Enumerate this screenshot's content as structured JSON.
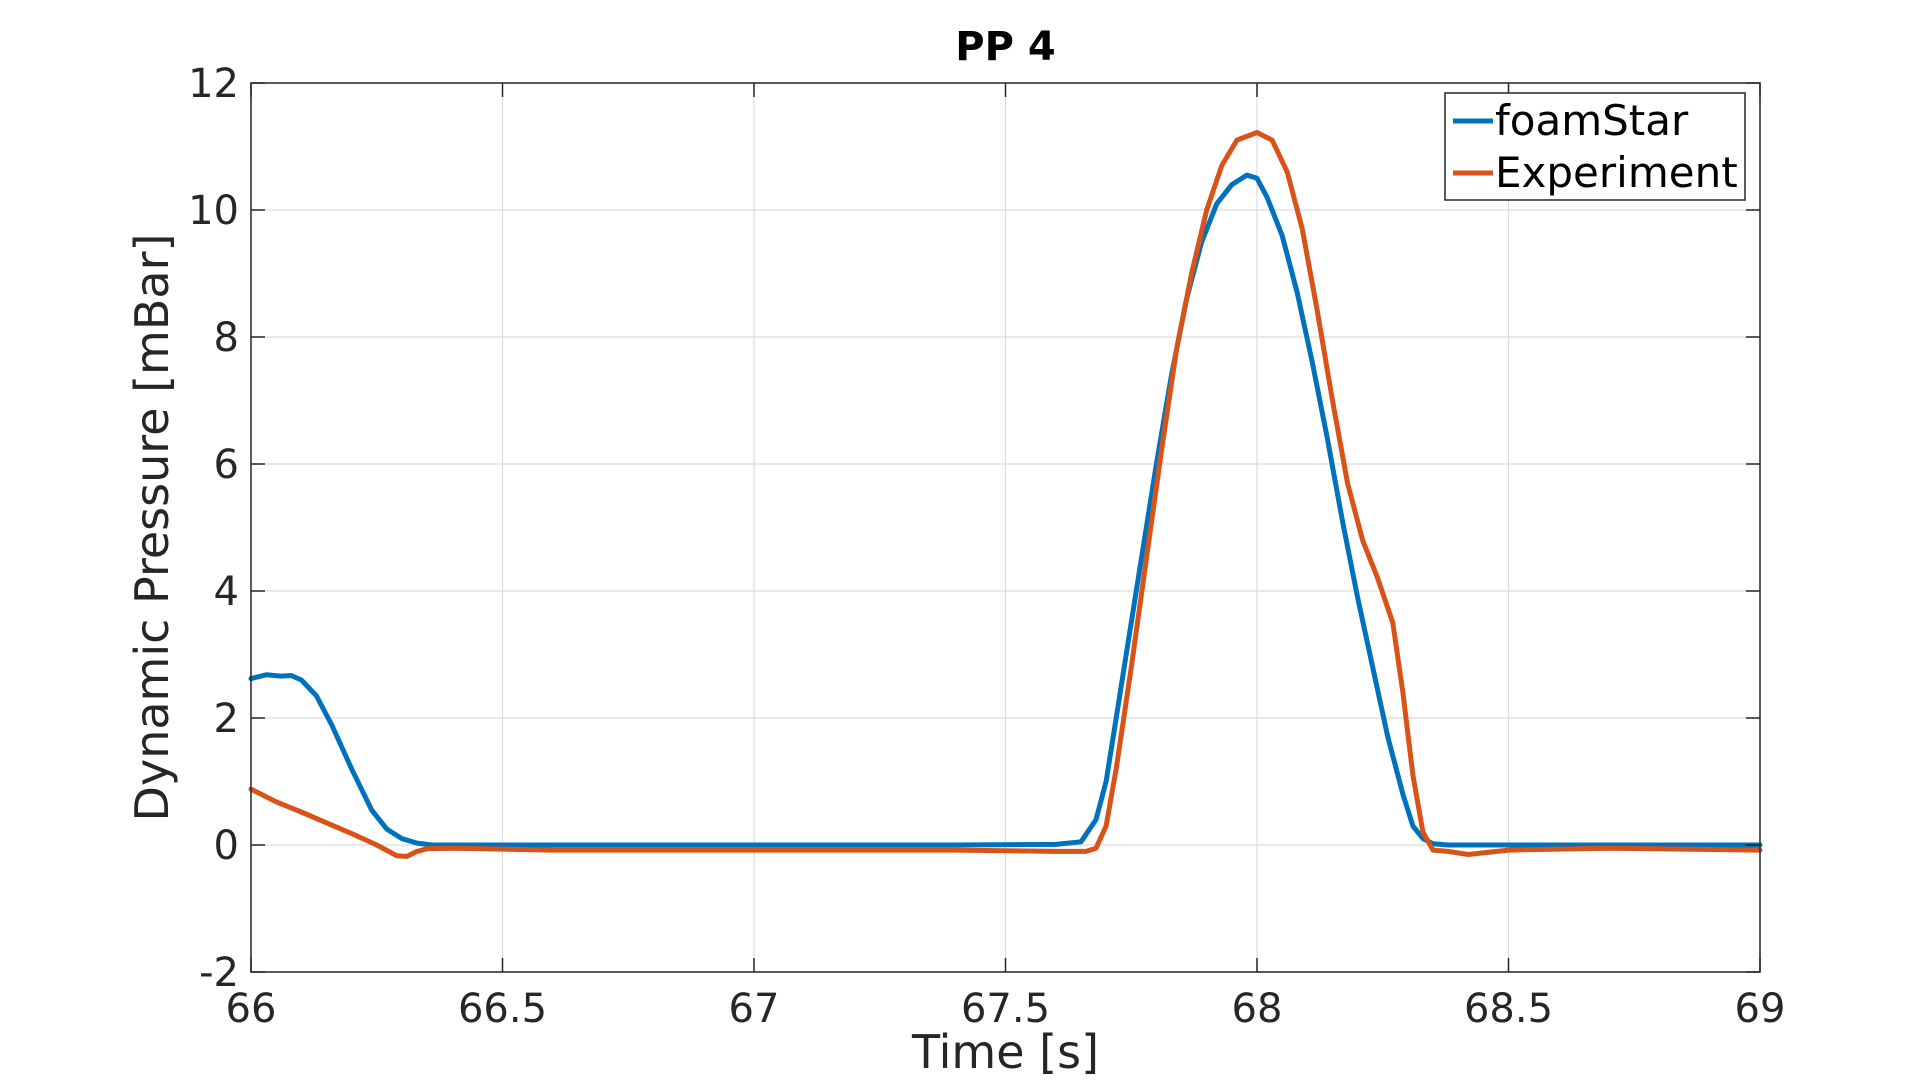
{
  "chart_data": {
    "type": "line",
    "title": "PP 4",
    "xlabel": "Time [s]",
    "ylabel": "Dynamic Pressure [mBar]",
    "xlim": [
      66,
      69
    ],
    "ylim": [
      -2,
      12
    ],
    "xticks": [
      66,
      66.5,
      67,
      67.5,
      68,
      68.5,
      69
    ],
    "yticks": [
      -2,
      0,
      2,
      4,
      6,
      8,
      10,
      12
    ],
    "xtick_labels": [
      "66",
      "66.5",
      "67",
      "67.5",
      "68",
      "68.5",
      "69"
    ],
    "ytick_labels": [
      "-2",
      "0",
      "2",
      "4",
      "6",
      "8",
      "10",
      "12"
    ],
    "grid": true,
    "legend_position": "top-right",
    "series": [
      {
        "name": "foamStar",
        "color": "#0072BD",
        "x": [
          66.0,
          66.03,
          66.06,
          66.08,
          66.1,
          66.13,
          66.16,
          66.2,
          66.24,
          66.27,
          66.3,
          66.33,
          66.36,
          66.4,
          66.6,
          66.8,
          67.0,
          67.2,
          67.4,
          67.6,
          67.65,
          67.68,
          67.7,
          67.72,
          67.74,
          67.77,
          67.8,
          67.83,
          67.86,
          67.89,
          67.92,
          67.95,
          67.98,
          68.0,
          68.02,
          68.05,
          68.08,
          68.11,
          68.14,
          68.17,
          68.2,
          68.23,
          68.26,
          68.29,
          68.31,
          68.33,
          68.35,
          68.38,
          68.5,
          68.7,
          69.0
        ],
        "y": [
          2.62,
          2.68,
          2.66,
          2.67,
          2.6,
          2.35,
          1.9,
          1.2,
          0.55,
          0.25,
          0.1,
          0.03,
          0.0,
          0.0,
          0.0,
          0.0,
          0.0,
          0.0,
          0.0,
          0.01,
          0.05,
          0.4,
          1.0,
          2.0,
          3.0,
          4.5,
          6.0,
          7.4,
          8.6,
          9.5,
          10.1,
          10.4,
          10.55,
          10.5,
          10.2,
          9.6,
          8.7,
          7.6,
          6.4,
          5.1,
          3.9,
          2.8,
          1.7,
          0.8,
          0.3,
          0.1,
          0.02,
          0.0,
          0.0,
          0.0,
          0.0
        ]
      },
      {
        "name": "Experiment",
        "color": "#D95319",
        "x": [
          66.0,
          66.05,
          66.1,
          66.15,
          66.2,
          66.25,
          66.29,
          66.31,
          66.33,
          66.35,
          66.4,
          66.6,
          66.8,
          67.0,
          67.2,
          67.4,
          67.6,
          67.66,
          67.68,
          67.7,
          67.72,
          67.75,
          67.78,
          67.81,
          67.84,
          67.87,
          67.9,
          67.93,
          67.96,
          68.0,
          68.03,
          68.06,
          68.09,
          68.12,
          68.15,
          68.18,
          68.21,
          68.24,
          68.27,
          68.29,
          68.31,
          68.33,
          68.35,
          68.38,
          68.42,
          68.5,
          68.7,
          69.0
        ],
        "y": [
          0.88,
          0.68,
          0.52,
          0.35,
          0.18,
          0.0,
          -0.17,
          -0.18,
          -0.1,
          -0.06,
          -0.05,
          -0.08,
          -0.08,
          -0.08,
          -0.08,
          -0.08,
          -0.1,
          -0.1,
          -0.05,
          0.3,
          1.2,
          2.8,
          4.5,
          6.2,
          7.8,
          9.0,
          10.0,
          10.7,
          11.1,
          11.22,
          11.1,
          10.6,
          9.7,
          8.4,
          7.0,
          5.7,
          4.8,
          4.2,
          3.5,
          2.4,
          1.1,
          0.2,
          -0.08,
          -0.1,
          -0.15,
          -0.08,
          -0.05,
          -0.08
        ]
      }
    ]
  }
}
